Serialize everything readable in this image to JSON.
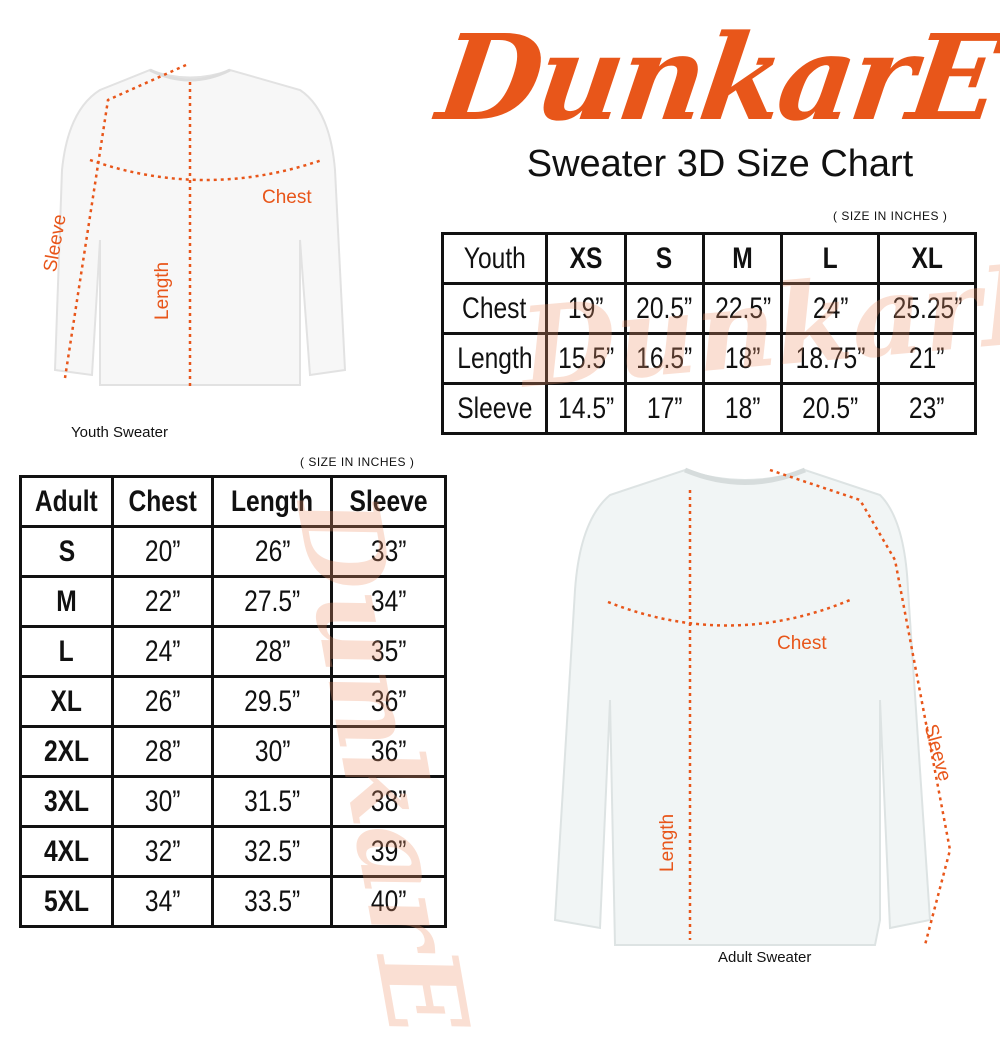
{
  "brand": {
    "logo_text": "DunkarE",
    "color": "#e8561a"
  },
  "title": "Sweater 3D Size Chart",
  "youth_chart": {
    "units_note": "( SIZE IN INCHES )",
    "header": [
      "Youth",
      "XS",
      "S",
      "M",
      "L",
      "XL"
    ],
    "rows": [
      [
        "Chest",
        "19”",
        "20.5”",
        "22.5”",
        "24”",
        "25.25”"
      ],
      [
        "Length",
        "15.5”",
        "16.5”",
        "18”",
        "18.75”",
        "21”"
      ],
      [
        "Sleeve",
        "14.5”",
        "17”",
        "18”",
        "20.5”",
        "23”"
      ]
    ]
  },
  "adult_chart": {
    "units_note": "( SIZE IN INCHES )",
    "header": [
      "Adult",
      "Chest",
      "Length",
      "Sleeve"
    ],
    "rows": [
      [
        "S",
        "20”",
        "26”",
        "33”"
      ],
      [
        "M",
        "22”",
        "27.5”",
        "34”"
      ],
      [
        "L",
        "24”",
        "28”",
        "35”"
      ],
      [
        "XL",
        "26”",
        "29.5”",
        "36”"
      ],
      [
        "2XL",
        "28”",
        "30”",
        "36”"
      ],
      [
        "3XL",
        "30”",
        "31.5”",
        "38”"
      ],
      [
        "4XL",
        "32”",
        "32.5”",
        "39”"
      ],
      [
        "5XL",
        "34”",
        "33.5”",
        "40”"
      ]
    ]
  },
  "youth_sweater": {
    "caption": "Youth Sweater",
    "labels": {
      "chest": "Chest",
      "length": "Length",
      "sleeve": "Sleeve"
    }
  },
  "adult_sweater": {
    "caption": "Adult Sweater",
    "labels": {
      "chest": "Chest",
      "length": "Length",
      "sleeve": "Sleeve"
    }
  }
}
